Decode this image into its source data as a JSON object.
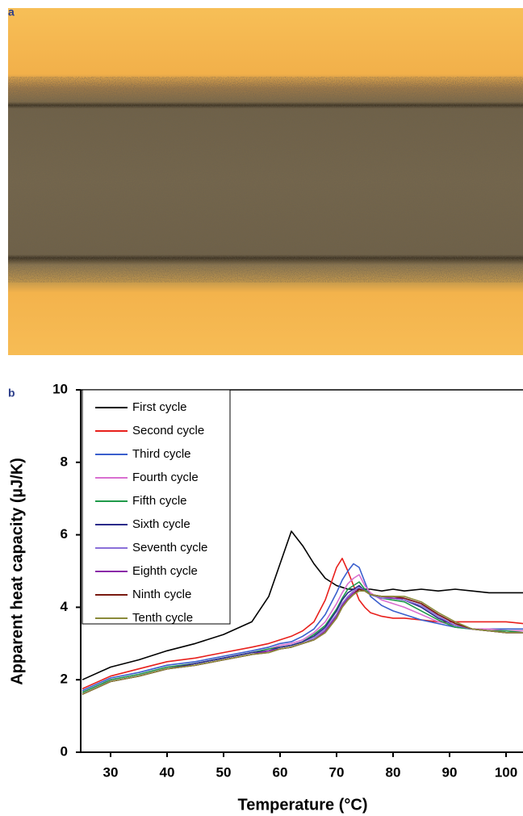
{
  "panel_a_label": "a",
  "chart_data": {
    "type": "line",
    "panel_label": "b",
    "xlabel": "Temperature (°C)",
    "ylabel": "Apparent heat capacity (µJ/K)",
    "xlim": [
      25,
      103
    ],
    "xticks": [
      30,
      40,
      50,
      60,
      70,
      80,
      90,
      100
    ],
    "ylim": [
      0,
      10
    ],
    "yticks": [
      0,
      2,
      4,
      6,
      8,
      10
    ],
    "legend": "upper left",
    "x": [
      25,
      30,
      35,
      40,
      45,
      50,
      55,
      58,
      60,
      62,
      64,
      66,
      68,
      70,
      71,
      72,
      73,
      74,
      75,
      76,
      78,
      80,
      82,
      85,
      88,
      91,
      94,
      97,
      100,
      103
    ],
    "series": [
      {
        "name": "First cycle",
        "color": "#000000",
        "values": [
          2.0,
          2.35,
          2.55,
          2.8,
          3.0,
          3.25,
          3.6,
          4.3,
          5.2,
          6.1,
          5.7,
          5.2,
          4.8,
          4.6,
          4.55,
          4.5,
          4.5,
          4.5,
          4.5,
          4.5,
          4.45,
          4.5,
          4.45,
          4.5,
          4.45,
          4.5,
          4.45,
          4.4,
          4.4,
          4.4
        ]
      },
      {
        "name": "Second cycle",
        "color": "#e8201c",
        "values": [
          1.75,
          2.1,
          2.3,
          2.5,
          2.6,
          2.75,
          2.9,
          3.0,
          3.1,
          3.2,
          3.35,
          3.6,
          4.2,
          5.1,
          5.35,
          5.0,
          4.6,
          4.2,
          4.0,
          3.85,
          3.75,
          3.7,
          3.7,
          3.65,
          3.6,
          3.6,
          3.6,
          3.6,
          3.6,
          3.55
        ]
      },
      {
        "name": "Third cycle",
        "color": "#3a5fcd",
        "values": [
          1.7,
          2.05,
          2.2,
          2.4,
          2.5,
          2.65,
          2.8,
          2.9,
          3.0,
          3.05,
          3.2,
          3.4,
          3.8,
          4.4,
          4.75,
          5.0,
          5.2,
          5.1,
          4.7,
          4.3,
          4.05,
          3.9,
          3.8,
          3.65,
          3.55,
          3.45,
          3.4,
          3.4,
          3.4,
          3.4
        ]
      },
      {
        "name": "Fourth cycle",
        "color": "#d96fd0",
        "values": [
          1.65,
          2.0,
          2.15,
          2.35,
          2.45,
          2.6,
          2.75,
          2.85,
          2.95,
          3.0,
          3.1,
          3.3,
          3.6,
          4.1,
          4.4,
          4.65,
          4.8,
          4.9,
          4.6,
          4.4,
          4.2,
          4.1,
          4.0,
          3.8,
          3.6,
          3.5,
          3.4,
          3.4,
          3.35,
          3.35
        ]
      },
      {
        "name": "Fifth cycle",
        "color": "#1f9a4a",
        "values": [
          1.65,
          2.0,
          2.15,
          2.35,
          2.45,
          2.6,
          2.75,
          2.85,
          2.9,
          2.95,
          3.05,
          3.25,
          3.5,
          3.95,
          4.25,
          4.5,
          4.6,
          4.7,
          4.5,
          4.35,
          4.25,
          4.2,
          4.15,
          3.9,
          3.65,
          3.45,
          3.4,
          3.35,
          3.35,
          3.3
        ]
      },
      {
        "name": "Sixth cycle",
        "color": "#2a2a8a",
        "values": [
          1.6,
          1.95,
          2.1,
          2.3,
          2.45,
          2.6,
          2.75,
          2.8,
          2.9,
          2.95,
          3.05,
          3.2,
          3.45,
          3.9,
          4.2,
          4.4,
          4.5,
          4.6,
          4.45,
          4.35,
          4.25,
          4.25,
          4.2,
          4.0,
          3.7,
          3.5,
          3.4,
          3.35,
          3.3,
          3.3
        ]
      },
      {
        "name": "Seventh cycle",
        "color": "#8a6fd8",
        "values": [
          1.6,
          1.95,
          2.1,
          2.3,
          2.4,
          2.55,
          2.7,
          2.8,
          2.85,
          2.9,
          3.0,
          3.15,
          3.4,
          3.8,
          4.1,
          4.3,
          4.45,
          4.55,
          4.45,
          4.35,
          4.25,
          4.25,
          4.2,
          4.05,
          3.75,
          3.5,
          3.4,
          3.35,
          3.3,
          3.3
        ]
      },
      {
        "name": "Eighth cycle",
        "color": "#8a2aa8",
        "values": [
          1.6,
          1.95,
          2.1,
          2.3,
          2.4,
          2.55,
          2.7,
          2.8,
          2.85,
          2.9,
          3.0,
          3.1,
          3.35,
          3.75,
          4.05,
          4.25,
          4.4,
          4.5,
          4.45,
          4.35,
          4.3,
          4.25,
          4.25,
          4.1,
          3.8,
          3.55,
          3.4,
          3.35,
          3.3,
          3.3
        ]
      },
      {
        "name": "Ninth cycle",
        "color": "#7a1a10",
        "values": [
          1.6,
          1.95,
          2.1,
          2.3,
          2.4,
          2.55,
          2.7,
          2.75,
          2.85,
          2.9,
          3.0,
          3.1,
          3.3,
          3.7,
          4.0,
          4.2,
          4.35,
          4.5,
          4.45,
          4.35,
          4.3,
          4.3,
          4.25,
          4.1,
          3.8,
          3.55,
          3.4,
          3.35,
          3.3,
          3.3
        ]
      },
      {
        "name": "Tenth cycle",
        "color": "#8a8a3a",
        "values": [
          1.6,
          1.95,
          2.1,
          2.3,
          2.4,
          2.55,
          2.7,
          2.75,
          2.85,
          2.9,
          3.0,
          3.1,
          3.3,
          3.7,
          4.0,
          4.2,
          4.35,
          4.45,
          4.45,
          4.35,
          4.3,
          4.3,
          4.3,
          4.15,
          3.85,
          3.6,
          3.4,
          3.35,
          3.3,
          3.3
        ]
      }
    ]
  }
}
